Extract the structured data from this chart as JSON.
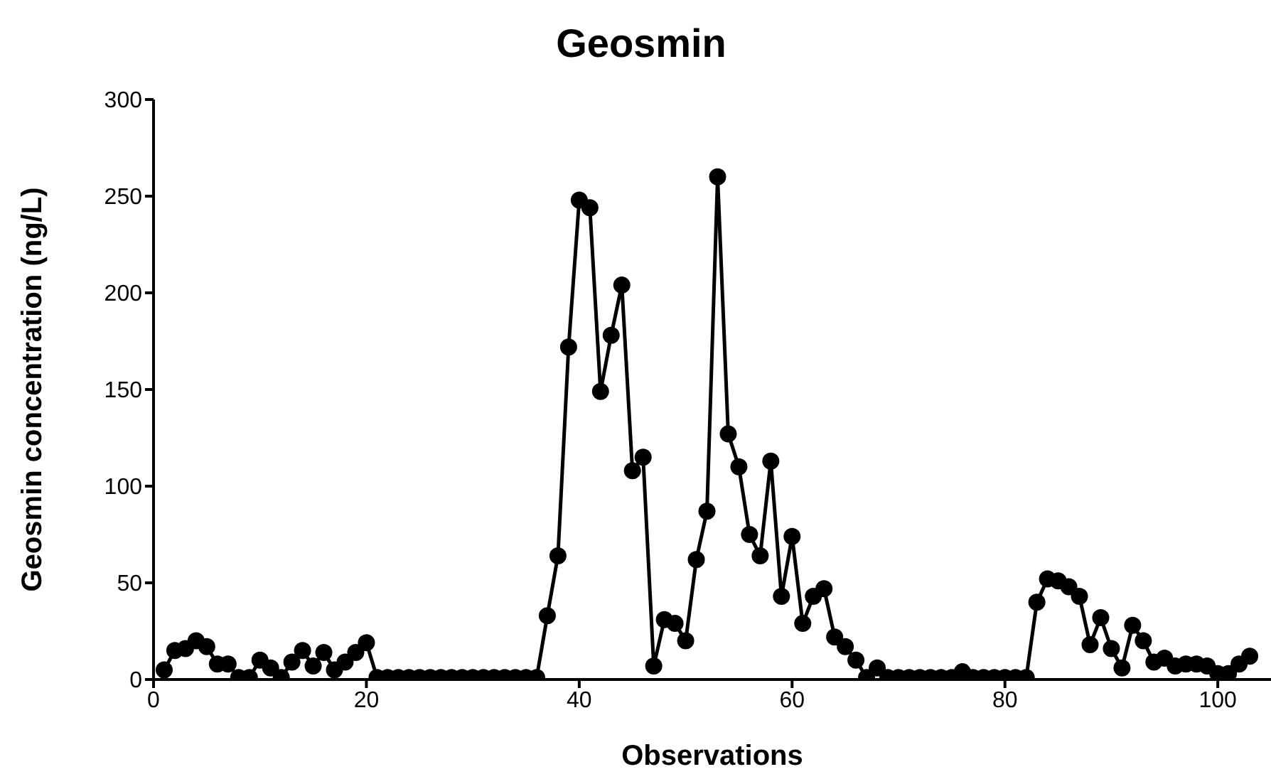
{
  "chart_data": {
    "type": "line",
    "title": "Geosmin",
    "xlabel": "Observations",
    "ylabel": "Geosmin concentration (ng/L)",
    "x": [
      1,
      2,
      3,
      4,
      5,
      6,
      7,
      8,
      9,
      10,
      11,
      12,
      13,
      14,
      15,
      16,
      17,
      18,
      19,
      20,
      21,
      22,
      23,
      24,
      25,
      26,
      27,
      28,
      29,
      30,
      31,
      32,
      33,
      34,
      35,
      36,
      37,
      38,
      39,
      40,
      41,
      42,
      43,
      44,
      45,
      46,
      47,
      48,
      49,
      50,
      51,
      52,
      53,
      54,
      55,
      56,
      57,
      58,
      59,
      60,
      61,
      62,
      63,
      64,
      65,
      66,
      67,
      68,
      69,
      70,
      71,
      72,
      73,
      74,
      75,
      76,
      77,
      78,
      79,
      80,
      81,
      82,
      83,
      84,
      85,
      86,
      87,
      88,
      89,
      90,
      91,
      92,
      93,
      94,
      95,
      96,
      97,
      98,
      99,
      100,
      101,
      102,
      103
    ],
    "series": [
      {
        "color": "#000000",
        "values": [
          5,
          15,
          16,
          20,
          17,
          8,
          8,
          1,
          1,
          10,
          6,
          1,
          9,
          15,
          7,
          14,
          5,
          9,
          14,
          19,
          1,
          1,
          1,
          1,
          1,
          1,
          1,
          1,
          1,
          1,
          1,
          1,
          1,
          1,
          1,
          1,
          33,
          64,
          172,
          248,
          244,
          149,
          178,
          204,
          108,
          115,
          7,
          31,
          29,
          20,
          62,
          87,
          260,
          127,
          110,
          75,
          64,
          113,
          43,
          74,
          29,
          43,
          47,
          22,
          17,
          10,
          1,
          6,
          1,
          1,
          1,
          1,
          1,
          1,
          1,
          4,
          1,
          1,
          1,
          1,
          1,
          1,
          40,
          52,
          51,
          48,
          43,
          18,
          32,
          16,
          6,
          28,
          20,
          9,
          11,
          7,
          8,
          8,
          7,
          3,
          3,
          8,
          12
        ]
      }
    ],
    "xlim": [
      0,
      105
    ],
    "xticks": [
      0,
      20,
      40,
      60,
      80,
      100
    ],
    "ylim": [
      0,
      300
    ],
    "yticks": [
      0,
      50,
      100,
      150,
      200,
      250,
      300
    ],
    "grid": false,
    "legend": false,
    "marker": "circle",
    "line_style": "solid"
  }
}
